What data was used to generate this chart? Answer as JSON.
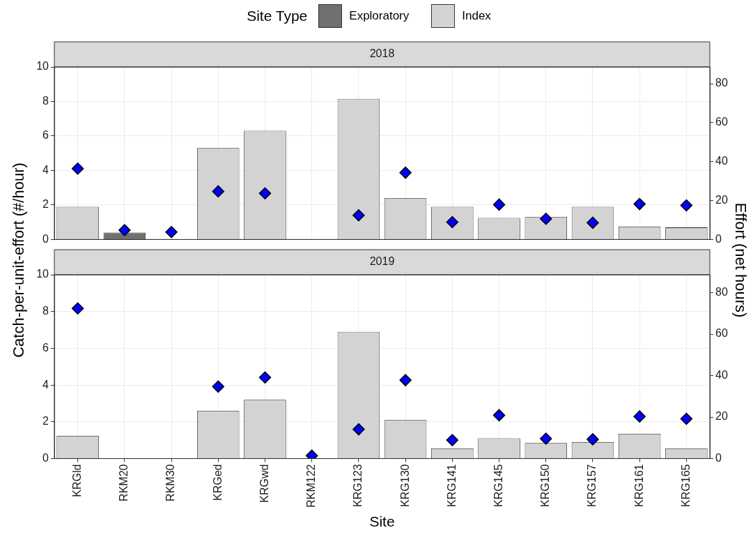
{
  "chart_data": [
    {
      "type": "bar",
      "title": "2018",
      "ylabel": "Catch-per-unit-effort (#/hour)",
      "y2label": "Effort (net hours)",
      "legend": "top",
      "legend_title": "Site Type",
      "categories": [
        "KRGld",
        "RKM20",
        "RKM30",
        "KRGed",
        "KRGwd",
        "RKM122",
        "KRG123",
        "KRG130",
        "KRG141",
        "KRG145",
        "KRG150",
        "KRG157",
        "KRG161",
        "KRG165"
      ],
      "series": [
        {
          "name": "Exploratory",
          "color": "#707070",
          "values": [
            null,
            0.4,
            null,
            null,
            null,
            null,
            null,
            null,
            null,
            null,
            null,
            null,
            null,
            null
          ]
        },
        {
          "name": "Index",
          "color": "#d3d3d3",
          "values": [
            1.9,
            null,
            null,
            5.3,
            6.3,
            null,
            8.15,
            2.4,
            1.9,
            1.25,
            1.3,
            1.9,
            0.75,
            0.7
          ]
        },
        {
          "type": "scatter",
          "axis": "y2",
          "color": "#0000ff",
          "marker": "diamond",
          "x": [
            "KRGld",
            "RKM20",
            "RKM30",
            "KRGed",
            "KRGwd",
            "RKM122",
            "KRG123",
            "KRG130",
            "KRG141",
            "KRG145",
            "KRG150",
            "KRG157",
            "KRG161",
            "KRG165"
          ],
          "values": [
            36.4,
            4.8,
            3.8,
            24.7,
            23.7,
            null,
            12.4,
            34.3,
            8.9,
            17.9,
            10.6,
            8.6,
            18.2,
            17.5
          ]
        }
      ],
      "ylim": [
        0,
        10
      ],
      "yticks": [
        0,
        2,
        4,
        6,
        8,
        10
      ],
      "y2lim": [
        0,
        88.6
      ],
      "y2ticks": [
        0,
        20,
        40,
        60,
        80
      ],
      "grid": true,
      "tick_labels": "y"
    },
    {
      "type": "bar",
      "title": "2019",
      "xlabel": "Site",
      "categories": [
        "KRGld",
        "RKM20",
        "RKM30",
        "KRGed",
        "KRGwd",
        "RKM122",
        "KRG123",
        "KRG130",
        "KRG141",
        "KRG145",
        "KRG150",
        "KRG157",
        "KRG161",
        "KRG165"
      ],
      "series": [
        {
          "color": "#d3d3d3",
          "values": [
            1.24,
            null,
            null,
            2.6,
            3.2,
            null,
            6.9,
            2.1,
            0.55,
            1.1,
            0.85,
            0.9,
            1.35,
            0.55
          ]
        },
        {
          "type": "scatter",
          "axis": "y2",
          "color": "#0000ff",
          "marker": "diamond",
          "x": [
            "KRGld",
            "RKM20",
            "RKM30",
            "KRGed",
            "KRGwd",
            "RKM122",
            "KRG123",
            "KRG130",
            "KRG141",
            "KRG145",
            "KRG150",
            "KRG157",
            "KRG161",
            "KRG165"
          ],
          "values": [
            72.4,
            null,
            null,
            34.7,
            39.1,
            1.4,
            14.1,
            37.8,
            8.9,
            20.9,
            9.6,
            9.3,
            20.3,
            19.2
          ]
        }
      ],
      "ylim": [
        0,
        10
      ],
      "yticks": [
        0,
        2,
        4,
        6,
        8,
        10
      ],
      "y2lim": [
        0,
        88.6
      ],
      "y2ticks": [
        0,
        20,
        40,
        60,
        80
      ],
      "grid": true
    }
  ]
}
